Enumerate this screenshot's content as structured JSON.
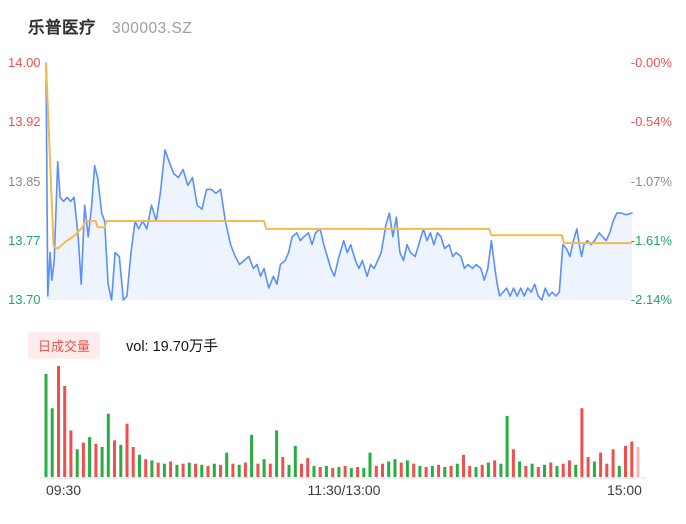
{
  "header": {
    "title": "乐普医疗",
    "code": "300003.SZ"
  },
  "volume_header": {
    "badge_label": "日成交量",
    "vol_label": "vol: 19.70万手"
  },
  "colors": {
    "up_red": "#e85352",
    "down_green": "#21a567",
    "neutral_gray": "#8c8c8c",
    "price_line": "#5b8ff9",
    "price_fill": "rgba(91,143,249,0.10)",
    "avg_line": "#f3bb4f",
    "vol_red": "#f0504d",
    "vol_green": "#28ad43",
    "vol_pale": "#f8b4b2",
    "baseline": "#e3e3e3",
    "badge_bg": "#fdecec"
  },
  "chart_data": [
    {
      "type": "line",
      "title": "乐普医疗 300003.SZ 分时走势",
      "prev_close": 14.0,
      "ylim": [
        13.7,
        14.0
      ],
      "x_ticks": [
        "09:30",
        "11:30/13:00",
        "15:00"
      ],
      "y_ticks_left": [
        {
          "text": "14.00",
          "color": "#e85352"
        },
        {
          "text": "13.92",
          "color": "#e85352"
        },
        {
          "text": "13.85",
          "color": "#8c8c8c"
        },
        {
          "text": "13.77",
          "color": "#21a567"
        },
        {
          "text": "13.70",
          "color": "#21a567"
        }
      ],
      "y_ticks_right": [
        {
          "text": "-0.00%",
          "color": "#e85352"
        },
        {
          "text": "-0.54%",
          "color": "#e85352"
        },
        {
          "text": "-1.07%",
          "color": "#8c8c8c"
        },
        {
          "text": "-1.61%",
          "color": "#21a567"
        },
        {
          "text": "-2.14%",
          "color": "#21a567"
        }
      ],
      "series": [
        {
          "name": "price",
          "color": "#5b8ff9",
          "fill": "rgba(91,143,249,0.10)",
          "points": [
            [
              0.0,
              14.0
            ],
            [
              0.003,
              13.705
            ],
            [
              0.007,
              13.76
            ],
            [
              0.01,
              13.725
            ],
            [
              0.014,
              13.75
            ],
            [
              0.02,
              13.875
            ],
            [
              0.024,
              13.83
            ],
            [
              0.03,
              13.825
            ],
            [
              0.036,
              13.83
            ],
            [
              0.042,
              13.825
            ],
            [
              0.048,
              13.83
            ],
            [
              0.055,
              13.78
            ],
            [
              0.06,
              13.72
            ],
            [
              0.066,
              13.82
            ],
            [
              0.072,
              13.78
            ],
            [
              0.078,
              13.82
            ],
            [
              0.083,
              13.87
            ],
            [
              0.088,
              13.855
            ],
            [
              0.095,
              13.81
            ],
            [
              0.1,
              13.8
            ],
            [
              0.106,
              13.72
            ],
            [
              0.112,
              13.7
            ],
            [
              0.118,
              13.76
            ],
            [
              0.125,
              13.755
            ],
            [
              0.132,
              13.7
            ],
            [
              0.138,
              13.705
            ],
            [
              0.145,
              13.76
            ],
            [
              0.152,
              13.8
            ],
            [
              0.158,
              13.79
            ],
            [
              0.165,
              13.8
            ],
            [
              0.172,
              13.79
            ],
            [
              0.18,
              13.82
            ],
            [
              0.188,
              13.8
            ],
            [
              0.195,
              13.835
            ],
            [
              0.203,
              13.89
            ],
            [
              0.21,
              13.875
            ],
            [
              0.218,
              13.86
            ],
            [
              0.226,
              13.855
            ],
            [
              0.234,
              13.865
            ],
            [
              0.242,
              13.845
            ],
            [
              0.25,
              13.855
            ],
            [
              0.258,
              13.82
            ],
            [
              0.266,
              13.815
            ],
            [
              0.274,
              13.84
            ],
            [
              0.282,
              13.84
            ],
            [
              0.29,
              13.835
            ],
            [
              0.298,
              13.84
            ],
            [
              0.306,
              13.8
            ],
            [
              0.315,
              13.77
            ],
            [
              0.323,
              13.755
            ],
            [
              0.33,
              13.745
            ],
            [
              0.338,
              13.75
            ],
            [
              0.346,
              13.755
            ],
            [
              0.354,
              13.74
            ],
            [
              0.36,
              13.745
            ],
            [
              0.366,
              13.73
            ],
            [
              0.372,
              13.74
            ],
            [
              0.38,
              13.715
            ],
            [
              0.388,
              13.73
            ],
            [
              0.394,
              13.72
            ],
            [
              0.4,
              13.745
            ],
            [
              0.408,
              13.75
            ],
            [
              0.414,
              13.76
            ],
            [
              0.42,
              13.78
            ],
            [
              0.428,
              13.785
            ],
            [
              0.434,
              13.775
            ],
            [
              0.44,
              13.78
            ],
            [
              0.448,
              13.785
            ],
            [
              0.454,
              13.77
            ],
            [
              0.46,
              13.785
            ],
            [
              0.468,
              13.79
            ],
            [
              0.474,
              13.77
            ],
            [
              0.48,
              13.755
            ],
            [
              0.486,
              13.74
            ],
            [
              0.492,
              13.73
            ],
            [
              0.5,
              13.755
            ],
            [
              0.508,
              13.775
            ],
            [
              0.514,
              13.76
            ],
            [
              0.52,
              13.77
            ],
            [
              0.528,
              13.75
            ],
            [
              0.534,
              13.74
            ],
            [
              0.54,
              13.75
            ],
            [
              0.548,
              13.73
            ],
            [
              0.554,
              13.745
            ],
            [
              0.56,
              13.74
            ],
            [
              0.566,
              13.75
            ],
            [
              0.572,
              13.76
            ],
            [
              0.58,
              13.795
            ],
            [
              0.586,
              13.81
            ],
            [
              0.592,
              13.78
            ],
            [
              0.598,
              13.805
            ],
            [
              0.604,
              13.76
            ],
            [
              0.61,
              13.75
            ],
            [
              0.616,
              13.77
            ],
            [
              0.622,
              13.76
            ],
            [
              0.63,
              13.755
            ],
            [
              0.638,
              13.775
            ],
            [
              0.644,
              13.79
            ],
            [
              0.65,
              13.775
            ],
            [
              0.656,
              13.785
            ],
            [
              0.662,
              13.77
            ],
            [
              0.668,
              13.785
            ],
            [
              0.674,
              13.78
            ],
            [
              0.68,
              13.765
            ],
            [
              0.688,
              13.77
            ],
            [
              0.694,
              13.755
            ],
            [
              0.7,
              13.76
            ],
            [
              0.708,
              13.755
            ],
            [
              0.714,
              13.74
            ],
            [
              0.72,
              13.745
            ],
            [
              0.728,
              13.74
            ],
            [
              0.734,
              13.745
            ],
            [
              0.742,
              13.74
            ],
            [
              0.748,
              13.725
            ],
            [
              0.754,
              13.74
            ],
            [
              0.76,
              13.775
            ],
            [
              0.766,
              13.74
            ],
            [
              0.77,
              13.72
            ],
            [
              0.774,
              13.705
            ],
            [
              0.78,
              13.71
            ],
            [
              0.786,
              13.715
            ],
            [
              0.792,
              13.705
            ],
            [
              0.798,
              13.715
            ],
            [
              0.804,
              13.705
            ],
            [
              0.81,
              13.715
            ],
            [
              0.816,
              13.705
            ],
            [
              0.822,
              13.715
            ],
            [
              0.828,
              13.71
            ],
            [
              0.834,
              13.72
            ],
            [
              0.84,
              13.705
            ],
            [
              0.846,
              13.7
            ],
            [
              0.852,
              13.715
            ],
            [
              0.858,
              13.705
            ],
            [
              0.864,
              13.71
            ],
            [
              0.87,
              13.705
            ],
            [
              0.876,
              13.71
            ],
            [
              0.882,
              13.77
            ],
            [
              0.888,
              13.765
            ],
            [
              0.894,
              13.755
            ],
            [
              0.9,
              13.775
            ],
            [
              0.906,
              13.79
            ],
            [
              0.91,
              13.77
            ],
            [
              0.914,
              13.755
            ],
            [
              0.918,
              13.77
            ],
            [
              0.924,
              13.775
            ],
            [
              0.93,
              13.77
            ],
            [
              0.936,
              13.775
            ],
            [
              0.944,
              13.785
            ],
            [
              0.95,
              13.78
            ],
            [
              0.956,
              13.775
            ],
            [
              0.962,
              13.785
            ],
            [
              0.968,
              13.8
            ],
            [
              0.974,
              13.81
            ],
            [
              0.982,
              13.81
            ],
            [
              0.99,
              13.808
            ],
            [
              1.0,
              13.81
            ]
          ]
        },
        {
          "name": "avg_price",
          "color": "#f3bb4f",
          "points": [
            [
              0.0,
              14.0
            ],
            [
              0.013,
              13.768
            ],
            [
              0.02,
              13.765
            ],
            [
              0.032,
              13.773
            ],
            [
              0.048,
              13.781
            ],
            [
              0.062,
              13.792
            ],
            [
              0.068,
              13.8
            ],
            [
              0.085,
              13.8
            ],
            [
              0.088,
              13.792
            ],
            [
              0.1,
              13.792
            ],
            [
              0.103,
              13.8
            ],
            [
              0.372,
              13.8
            ],
            [
              0.376,
              13.79
            ],
            [
              0.756,
              13.79
            ],
            [
              0.76,
              13.782
            ],
            [
              0.88,
              13.782
            ],
            [
              0.884,
              13.772
            ],
            [
              1.0,
              13.772
            ]
          ]
        }
      ]
    },
    {
      "type": "bar",
      "title": "日成交量",
      "volume_caption": "vol: 19.70万手",
      "bar_colors": {
        "r": "#f0504d",
        "g": "#28ad43",
        "p": "#f8b4b2"
      },
      "bars": [
        [
          0.93,
          "g"
        ],
        [
          0.62,
          "g"
        ],
        [
          1.0,
          "r"
        ],
        [
          0.82,
          "r"
        ],
        [
          0.42,
          "r"
        ],
        [
          0.25,
          "g"
        ],
        [
          0.31,
          "r"
        ],
        [
          0.36,
          "g"
        ],
        [
          0.3,
          "r"
        ],
        [
          0.27,
          "g"
        ],
        [
          0.57,
          "g"
        ],
        [
          0.33,
          "r"
        ],
        [
          0.29,
          "g"
        ],
        [
          0.48,
          "r"
        ],
        [
          0.27,
          "r"
        ],
        [
          0.2,
          "g"
        ],
        [
          0.16,
          "r"
        ],
        [
          0.15,
          "g"
        ],
        [
          0.13,
          "r"
        ],
        [
          0.12,
          "g"
        ],
        [
          0.14,
          "r"
        ],
        [
          0.11,
          "g"
        ],
        [
          0.12,
          "r"
        ],
        [
          0.13,
          "g"
        ],
        [
          0.12,
          "r"
        ],
        [
          0.11,
          "g"
        ],
        [
          0.1,
          "r"
        ],
        [
          0.12,
          "g"
        ],
        [
          0.11,
          "r"
        ],
        [
          0.22,
          "g"
        ],
        [
          0.12,
          "r"
        ],
        [
          0.11,
          "g"
        ],
        [
          0.13,
          "r"
        ],
        [
          0.38,
          "g"
        ],
        [
          0.12,
          "r"
        ],
        [
          0.16,
          "g"
        ],
        [
          0.12,
          "r"
        ],
        [
          0.42,
          "g"
        ],
        [
          0.18,
          "r"
        ],
        [
          0.11,
          "g"
        ],
        [
          0.28,
          "g"
        ],
        [
          0.12,
          "r"
        ],
        [
          0.17,
          "r"
        ],
        [
          0.1,
          "g"
        ],
        [
          0.09,
          "r"
        ],
        [
          0.1,
          "g"
        ],
        [
          0.08,
          "r"
        ],
        [
          0.09,
          "g"
        ],
        [
          0.1,
          "r"
        ],
        [
          0.08,
          "g"
        ],
        [
          0.09,
          "r"
        ],
        [
          0.08,
          "g"
        ],
        [
          0.22,
          "g"
        ],
        [
          0.1,
          "r"
        ],
        [
          0.12,
          "r"
        ],
        [
          0.14,
          "g"
        ],
        [
          0.16,
          "g"
        ],
        [
          0.13,
          "r"
        ],
        [
          0.15,
          "g"
        ],
        [
          0.12,
          "r"
        ],
        [
          0.1,
          "g"
        ],
        [
          0.09,
          "r"
        ],
        [
          0.1,
          "g"
        ],
        [
          0.11,
          "r"
        ],
        [
          0.09,
          "g"
        ],
        [
          0.1,
          "r"
        ],
        [
          0.12,
          "g"
        ],
        [
          0.2,
          "r"
        ],
        [
          0.1,
          "r"
        ],
        [
          0.09,
          "g"
        ],
        [
          0.11,
          "r"
        ],
        [
          0.13,
          "g"
        ],
        [
          0.15,
          "r"
        ],
        [
          0.12,
          "g"
        ],
        [
          0.55,
          "g"
        ],
        [
          0.25,
          "r"
        ],
        [
          0.14,
          "g"
        ],
        [
          0.1,
          "r"
        ],
        [
          0.12,
          "g"
        ],
        [
          0.09,
          "r"
        ],
        [
          0.11,
          "g"
        ],
        [
          0.13,
          "r"
        ],
        [
          0.1,
          "g"
        ],
        [
          0.12,
          "r"
        ],
        [
          0.15,
          "r"
        ],
        [
          0.11,
          "g"
        ],
        [
          0.62,
          "r"
        ],
        [
          0.18,
          "r"
        ],
        [
          0.14,
          "g"
        ],
        [
          0.22,
          "r"
        ],
        [
          0.12,
          "r"
        ],
        [
          0.25,
          "r"
        ],
        [
          0.1,
          "g"
        ],
        [
          0.28,
          "r"
        ],
        [
          0.32,
          "r"
        ],
        [
          0.27,
          "p"
        ]
      ]
    }
  ]
}
